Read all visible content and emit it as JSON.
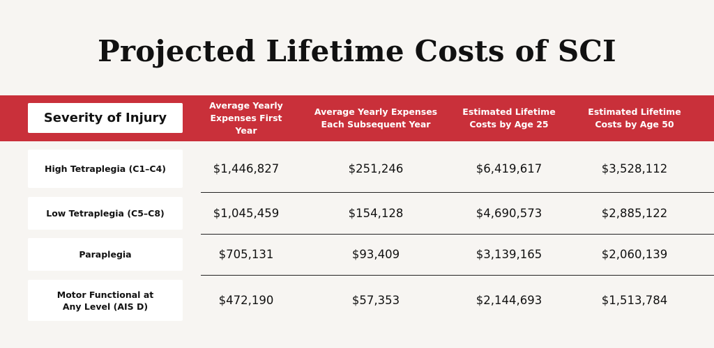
{
  "title": "Projected Lifetime Costs of SCI",
  "colors": {
    "header_band": "#c9303a",
    "background": "#f7f5f2",
    "label_box": "#ffffff"
  },
  "table": {
    "corner_label": "Severity of Injury",
    "columns": [
      "Average Yearly\nExpenses First Year",
      "Average Yearly Expenses\nEach Subsequent Year",
      "Estimated Lifetime\nCosts by Age 25",
      "Estimated Lifetime\nCosts by Age 50"
    ],
    "rows": [
      {
        "label": "High Tetraplegia (C1–C4)",
        "values": [
          "$1,446,827",
          "$251,246",
          "$6,419,617",
          "$3,528,112"
        ]
      },
      {
        "label": "Low Tetraplegia (C5–C8)",
        "values": [
          "$1,045,459",
          "$154,128",
          "$4,690,573",
          "$2,885,122"
        ]
      },
      {
        "label": "Paraplegia",
        "values": [
          "$705,131",
          "$93,409",
          "$3,139,165",
          "$2,060,139"
        ]
      },
      {
        "label": "Motor Functional at\nAny Level (AIS D)",
        "values": [
          "$472,190",
          "$57,353",
          "$2,144,693",
          "$1,513,784"
        ]
      }
    ]
  }
}
